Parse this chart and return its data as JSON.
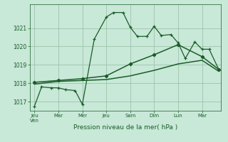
{
  "bg_color": "#c8e8d8",
  "grid_color": "#9cc4aa",
  "line_color": "#1a5c28",
  "xlabel": "Pression niveau de la mer( hPa )",
  "ylim": [
    1016.5,
    1022.3
  ],
  "yticks": [
    1017,
    1018,
    1019,
    1020,
    1021
  ],
  "xlim": [
    -0.2,
    7.8
  ],
  "xtick_pos": [
    0,
    1,
    2,
    3,
    4,
    5,
    6,
    7
  ],
  "xtick_labels": [
    "Jeu\nVen",
    "Mar",
    "Mer",
    "Jeu",
    "Sam",
    "Dim",
    "Lun",
    "Mar"
  ],
  "jagged_x": [
    0,
    0.3,
    0.7,
    1.0,
    1.3,
    1.7,
    2.0,
    2.5,
    3.0,
    3.3,
    3.7,
    4.0,
    4.3,
    4.7,
    5.0,
    5.3,
    5.7,
    6.0,
    6.3,
    6.7,
    7.0,
    7.3,
    7.7
  ],
  "jagged_y": [
    1016.75,
    1017.8,
    1017.75,
    1017.75,
    1017.65,
    1017.6,
    1016.85,
    1020.4,
    1021.6,
    1021.85,
    1021.85,
    1021.05,
    1020.55,
    1020.55,
    1021.1,
    1020.6,
    1020.65,
    1020.2,
    1019.35,
    1020.25,
    1019.85,
    1019.85,
    1018.75
  ],
  "jagged_markers_x": [
    0,
    0.3,
    0.7,
    1.0,
    1.3,
    1.7,
    2.0,
    2.5,
    3.0,
    3.3,
    3.7,
    4.0,
    4.3,
    4.7,
    5.0,
    5.3,
    5.7,
    6.0,
    6.3,
    6.7,
    7.0,
    7.3,
    7.7
  ],
  "upper_smooth_x": [
    0,
    1,
    2,
    3,
    4,
    5,
    6,
    7,
    7.7
  ],
  "upper_smooth_y": [
    1018.05,
    1018.15,
    1018.25,
    1018.4,
    1019.05,
    1019.55,
    1020.1,
    1019.45,
    1018.75
  ],
  "lower_smooth_x": [
    0,
    1,
    2,
    3,
    4,
    5,
    6,
    7,
    7.7
  ],
  "lower_smooth_y": [
    1017.95,
    1018.1,
    1018.15,
    1018.2,
    1018.4,
    1018.7,
    1019.05,
    1019.25,
    1018.65
  ],
  "figsize": [
    3.2,
    2.0
  ],
  "dpi": 100
}
